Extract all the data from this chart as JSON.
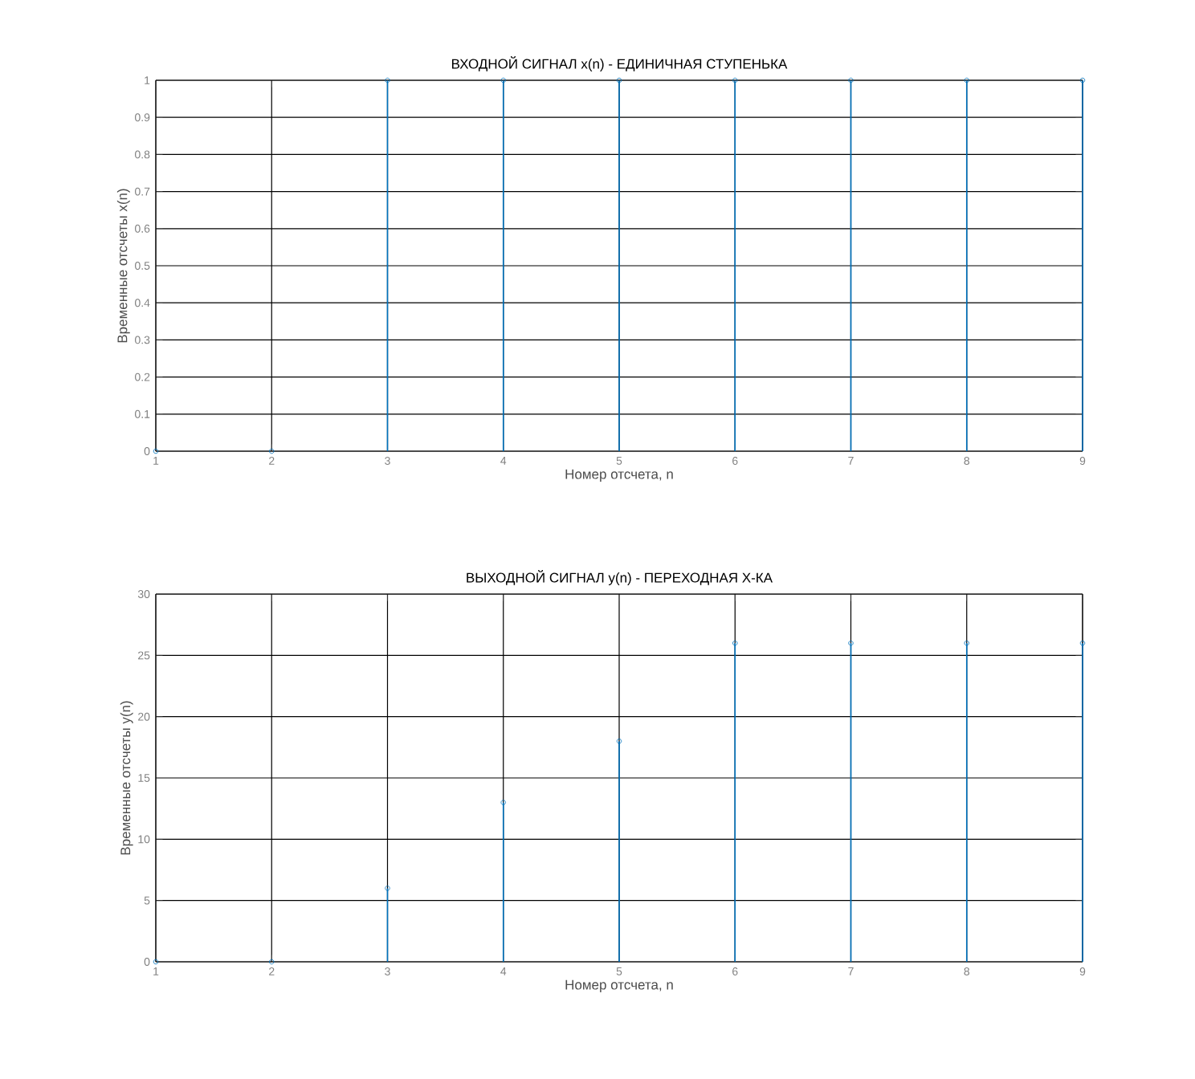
{
  "chart_data": [
    {
      "type": "lollipop",
      "title": "ВХОДНОЙ СИГНАЛ x(n) - ЕДИНИЧНАЯ СТУПЕНЬКА",
      "xlabel": "Номер отсчета, n",
      "ylabel": "Временные отсчеты x(n)",
      "x": [
        1,
        2,
        3,
        4,
        5,
        6,
        7,
        8,
        9
      ],
      "values": [
        0,
        0,
        1,
        1,
        1,
        1,
        1,
        1,
        1
      ],
      "color": "#0072bd",
      "marker": "circle",
      "xlim": [
        1,
        9
      ],
      "xticks": [
        1,
        2,
        3,
        4,
        5,
        6,
        7,
        8,
        9
      ],
      "ylim": [
        0,
        1
      ],
      "yticks": [
        0,
        0.1,
        0.2,
        0.3,
        0.4,
        0.5,
        0.6,
        0.7,
        0.8,
        0.9,
        1
      ],
      "grid": true
    },
    {
      "type": "lollipop",
      "title": "ВЫХОДНОЙ СИГНАЛ y(n) - ПЕРЕХОДНАЯ Х-КА",
      "xlabel": "Номер отсчета, n",
      "ylabel": "Временные отсчеты y(n)",
      "x": [
        1,
        2,
        3,
        4,
        5,
        6,
        7,
        8,
        9
      ],
      "values": [
        0,
        0,
        6,
        13,
        18,
        26,
        26,
        26,
        26
      ],
      "color": "#0072bd",
      "marker": "circle",
      "xlim": [
        1,
        9
      ],
      "xticks": [
        1,
        2,
        3,
        4,
        5,
        6,
        7,
        8,
        9
      ],
      "ylim": [
        0,
        30
      ],
      "yticks": [
        0,
        5,
        10,
        15,
        20,
        25,
        30
      ],
      "grid": true
    }
  ]
}
